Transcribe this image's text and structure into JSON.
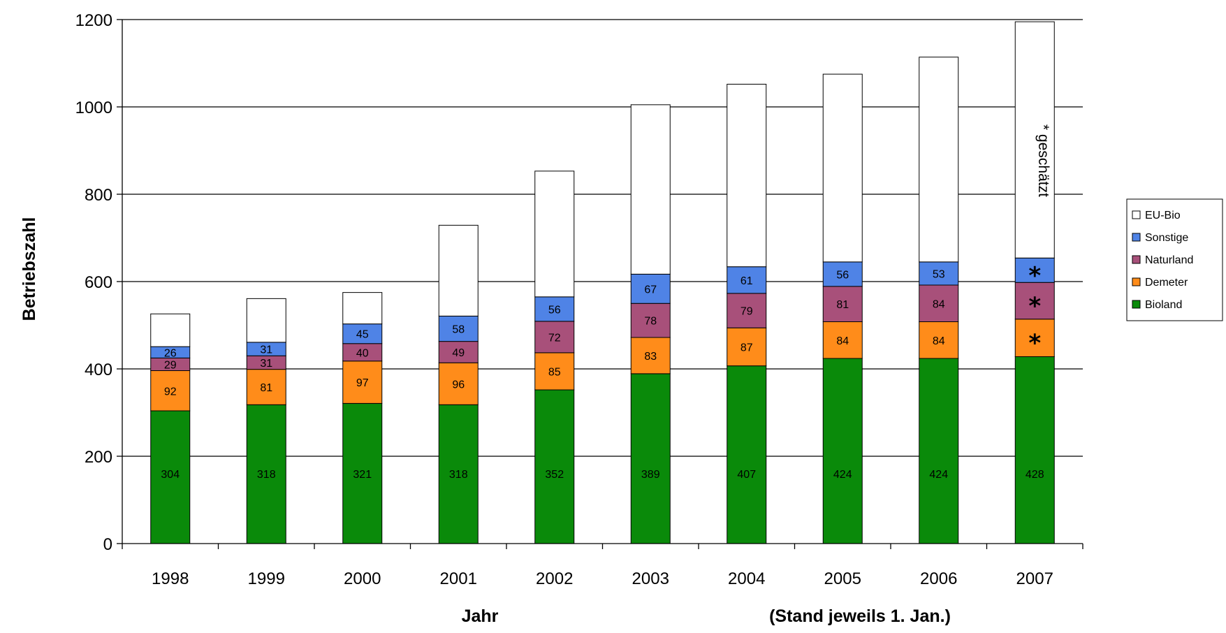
{
  "chart_data": {
    "type": "bar",
    "stacked": true,
    "categories": [
      "1998",
      "1999",
      "2000",
      "2001",
      "2002",
      "2003",
      "2004",
      "2005",
      "2006",
      "2007"
    ],
    "series": [
      {
        "name": "Bioland",
        "color": "#0a8a0a",
        "values": [
          304,
          318,
          321,
          318,
          352,
          389,
          407,
          424,
          424,
          428
        ],
        "labels": [
          "304",
          "318",
          "321",
          "318",
          "352",
          "389",
          "407",
          "424",
          "424",
          "428"
        ]
      },
      {
        "name": "Demeter",
        "color": "#ff8c1a",
        "values": [
          92,
          81,
          97,
          96,
          85,
          83,
          87,
          84,
          84,
          86
        ],
        "labels": [
          "92",
          "81",
          "97",
          "96",
          "85",
          "83",
          "87",
          "84",
          "84",
          "*"
        ]
      },
      {
        "name": "Naturland",
        "color": "#a8507a",
        "values": [
          29,
          31,
          40,
          49,
          72,
          78,
          79,
          81,
          84,
          84
        ],
        "labels": [
          "29",
          "31",
          "40",
          "49",
          "72",
          "78",
          "79",
          "81",
          "84",
          "*"
        ]
      },
      {
        "name": "Sonstige",
        "color": "#4f83e6",
        "values": [
          26,
          31,
          45,
          58,
          56,
          67,
          61,
          56,
          53,
          56
        ],
        "labels": [
          "26",
          "31",
          "45",
          "58",
          "56",
          "67",
          "61",
          "56",
          "53",
          "*"
        ]
      },
      {
        "name": "EU-Bio",
        "color": "#ffffff",
        "values": [
          75,
          100,
          72,
          208,
          288,
          388,
          418,
          430,
          469,
          541
        ],
        "labels": [
          "",
          "",
          "",
          "",
          "",
          "",
          "",
          "",
          "",
          ""
        ]
      }
    ],
    "ylim": [
      0,
      1200
    ],
    "yticks": [
      "0",
      "200",
      "400",
      "600",
      "800",
      "1000",
      "1200"
    ],
    "ylabel": "Betriebszahl",
    "xlabel": "Jahr",
    "note": "(Stand jeweils 1. Jan.)",
    "annotation": "* geschätzt",
    "legend_position": "right",
    "grid": "horizontal"
  }
}
